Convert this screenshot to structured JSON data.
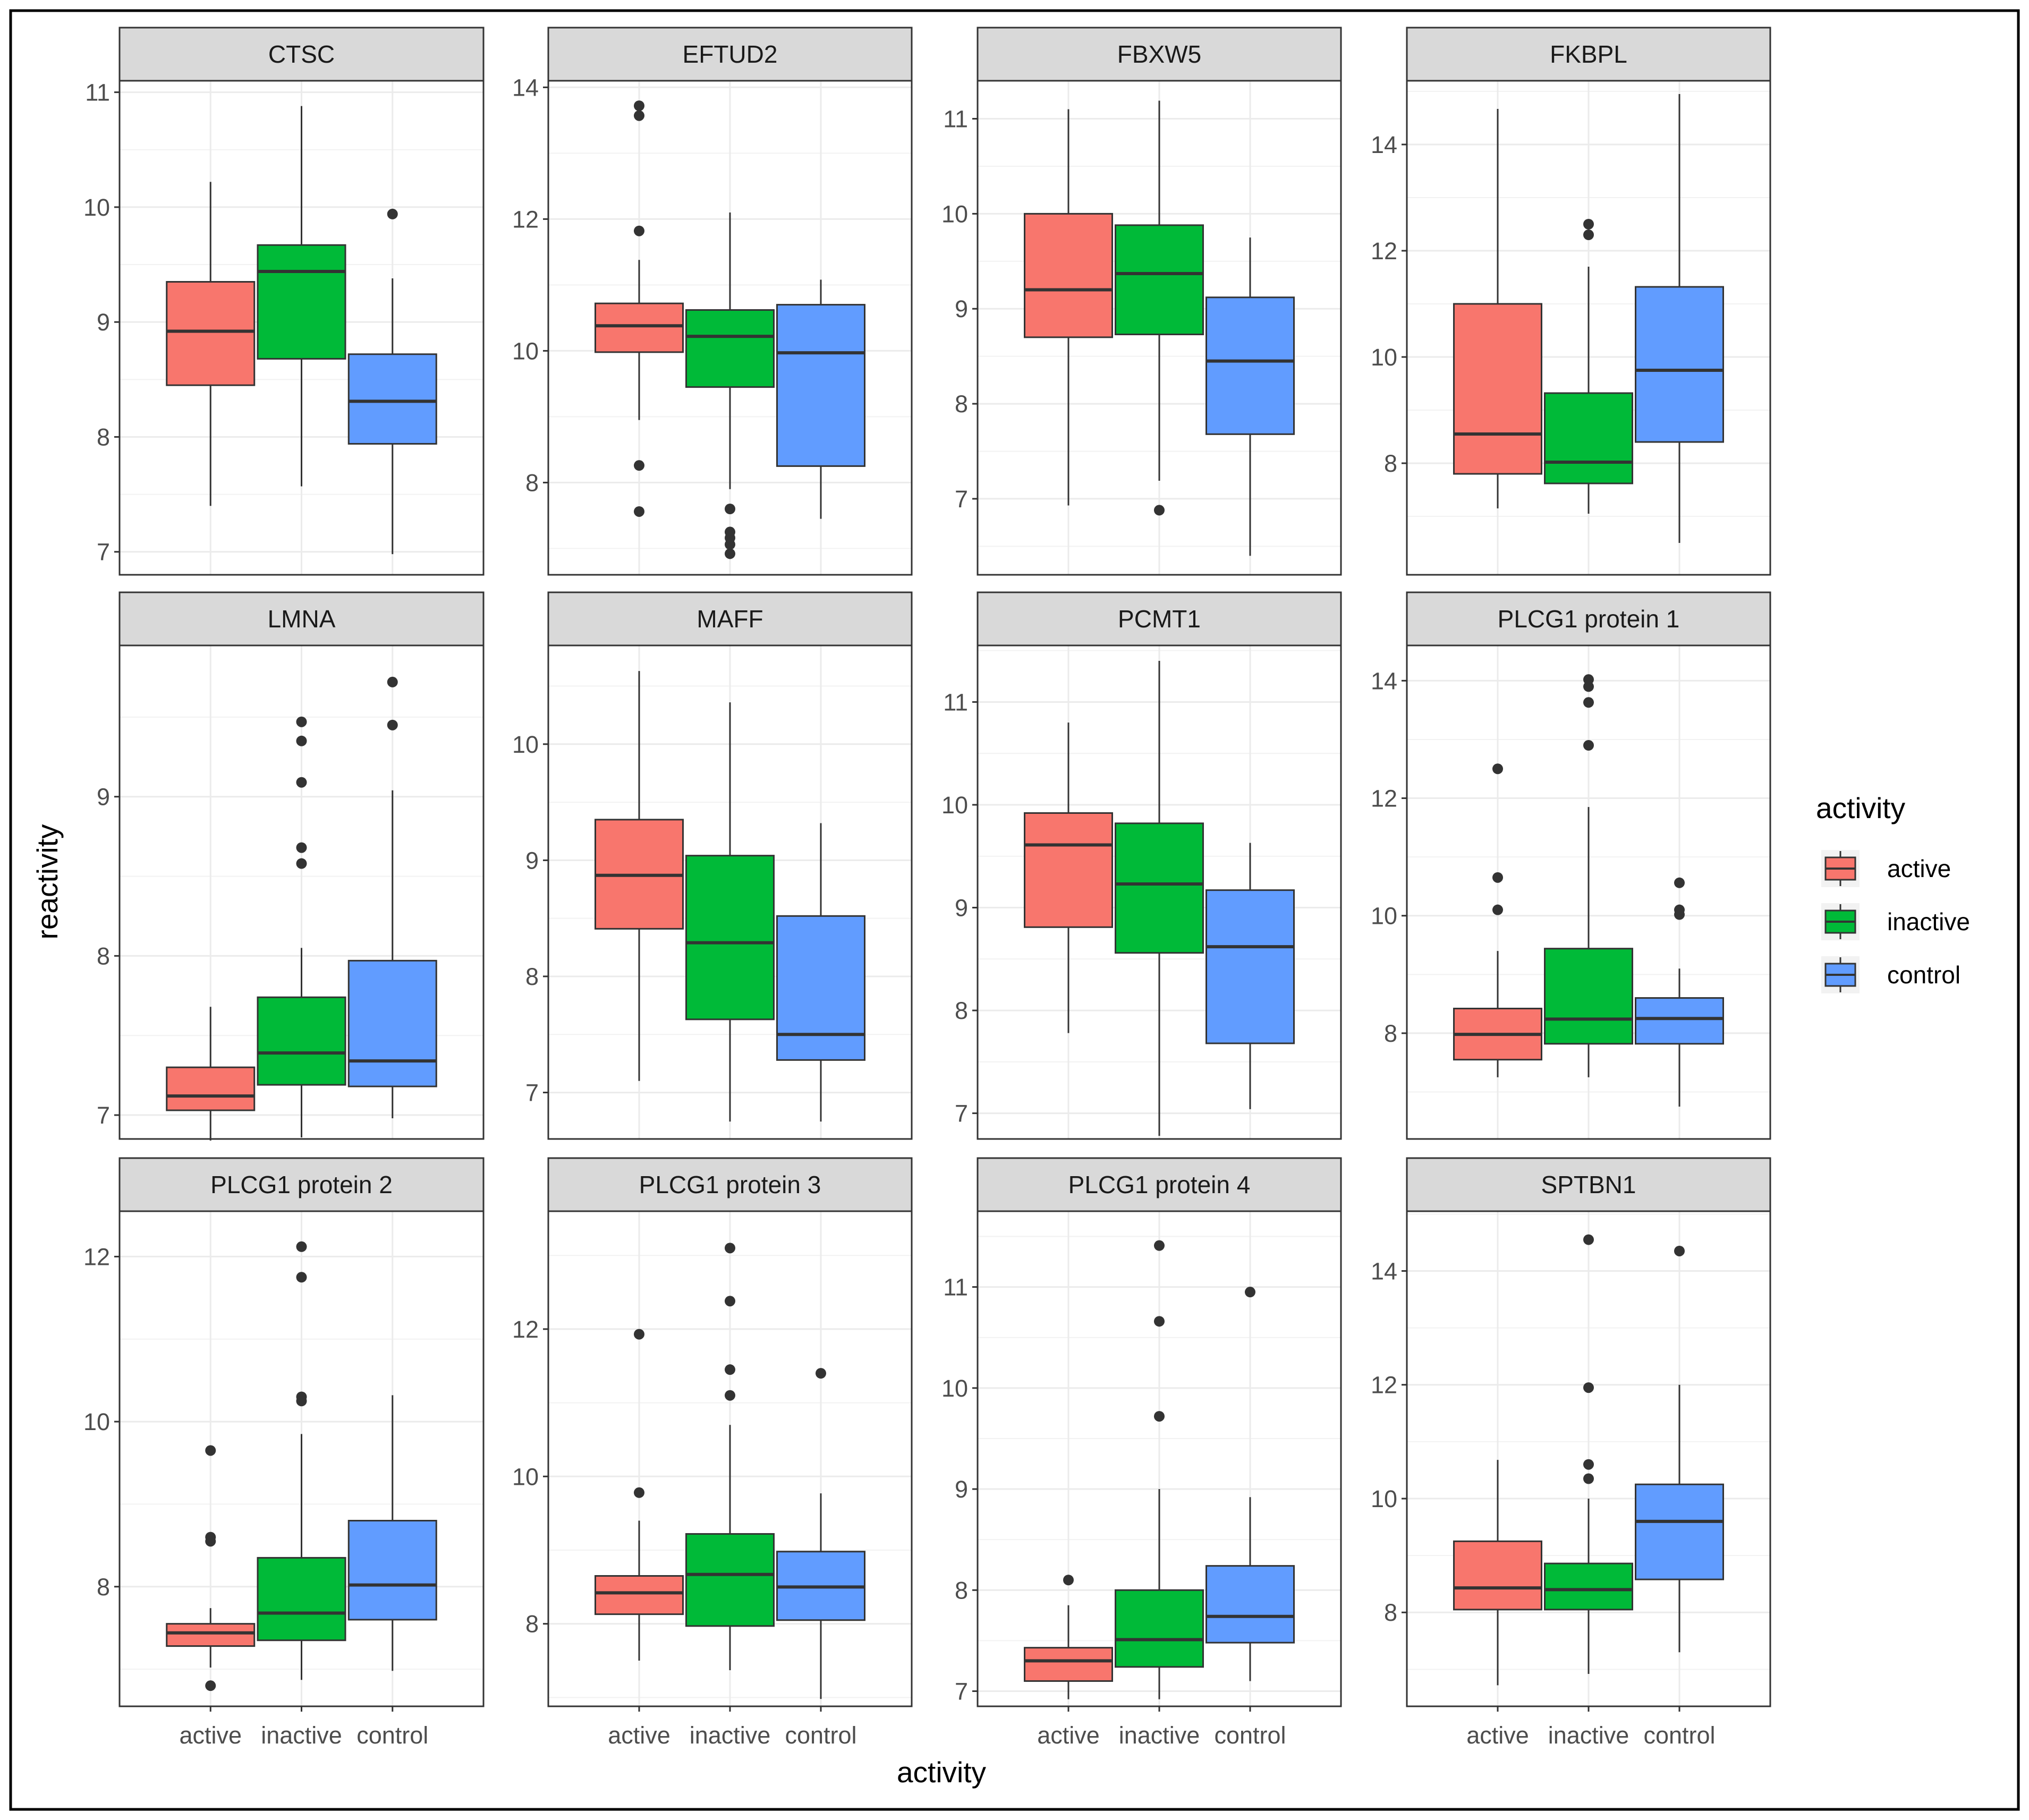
{
  "chart_data": {
    "type": "boxplot",
    "facet_layout": "4 columns x 3 rows",
    "xlabel": "activity",
    "ylabel": "reactivity",
    "categories": [
      "active",
      "inactive",
      "control"
    ],
    "legend": {
      "title": "activity",
      "position": "right",
      "entries": [
        {
          "label": "active",
          "color": "#F8766D"
        },
        {
          "label": "inactive",
          "color": "#00BA38"
        },
        {
          "label": "control",
          "color": "#619CFF"
        }
      ]
    },
    "grid": true,
    "panels": [
      {
        "title": "CTSC",
        "ylim": [
          6.8,
          11.1
        ],
        "yticks": [
          7,
          8,
          9,
          10,
          11
        ],
        "boxes": [
          {
            "group": "active",
            "low": 7.4,
            "q1": 8.45,
            "median": 8.92,
            "q3": 9.35,
            "high": 10.22,
            "outliers": []
          },
          {
            "group": "inactive",
            "low": 7.57,
            "q1": 8.68,
            "median": 9.44,
            "q3": 9.67,
            "high": 10.88,
            "outliers": []
          },
          {
            "group": "control",
            "low": 6.98,
            "q1": 7.94,
            "median": 8.31,
            "q3": 8.72,
            "high": 9.38,
            "outliers": [
              9.94
            ]
          }
        ]
      },
      {
        "title": "EFTUD2",
        "ylim": [
          6.6,
          14.1
        ],
        "yticks": [
          8,
          10,
          12,
          14
        ],
        "boxes": [
          {
            "group": "active",
            "low": 8.95,
            "q1": 9.98,
            "median": 10.38,
            "q3": 10.72,
            "high": 11.38,
            "outliers": [
              7.56,
              8.26,
              11.82,
              13.57,
              13.72
            ]
          },
          {
            "group": "inactive",
            "low": 7.9,
            "q1": 9.45,
            "median": 10.22,
            "q3": 10.62,
            "high": 12.1,
            "outliers": [
              6.92,
              7.06,
              7.16,
              7.25,
              7.6
            ]
          },
          {
            "group": "control",
            "low": 7.45,
            "q1": 8.25,
            "median": 9.97,
            "q3": 10.7,
            "high": 11.08,
            "outliers": []
          }
        ]
      },
      {
        "title": "FBXW5",
        "ylim": [
          6.2,
          11.4
        ],
        "yticks": [
          7,
          8,
          9,
          10,
          11
        ],
        "boxes": [
          {
            "group": "active",
            "low": 6.93,
            "q1": 8.7,
            "median": 9.2,
            "q3": 10.0,
            "high": 11.1,
            "outliers": []
          },
          {
            "group": "inactive",
            "low": 7.19,
            "q1": 8.73,
            "median": 9.37,
            "q3": 9.88,
            "high": 11.19,
            "outliers": [
              6.88
            ]
          },
          {
            "group": "control",
            "low": 6.4,
            "q1": 7.68,
            "median": 8.45,
            "q3": 9.12,
            "high": 9.75,
            "outliers": []
          }
        ]
      },
      {
        "title": "FKBPL",
        "ylim": [
          5.9,
          15.2
        ],
        "yticks": [
          8,
          10,
          12,
          14
        ],
        "boxes": [
          {
            "group": "active",
            "low": 7.15,
            "q1": 7.8,
            "median": 8.55,
            "q3": 11.0,
            "high": 14.67,
            "outliers": []
          },
          {
            "group": "inactive",
            "low": 7.05,
            "q1": 7.62,
            "median": 8.02,
            "q3": 9.32,
            "high": 11.7,
            "outliers": [
              12.3,
              12.5
            ]
          },
          {
            "group": "control",
            "low": 6.5,
            "q1": 8.4,
            "median": 9.75,
            "q3": 11.32,
            "high": 14.95,
            "outliers": []
          }
        ]
      },
      {
        "title": "LMNA",
        "ylim": [
          6.85,
          9.95
        ],
        "yticks": [
          7,
          8,
          9
        ],
        "boxes": [
          {
            "group": "active",
            "low": 6.84,
            "q1": 7.03,
            "median": 7.12,
            "q3": 7.3,
            "high": 7.68,
            "outliers": []
          },
          {
            "group": "inactive",
            "low": 6.86,
            "q1": 7.19,
            "median": 7.39,
            "q3": 7.74,
            "high": 8.05,
            "outliers": [
              8.58,
              8.68,
              9.09,
              9.35,
              9.47
            ]
          },
          {
            "group": "control",
            "low": 6.98,
            "q1": 7.18,
            "median": 7.34,
            "q3": 7.97,
            "high": 9.04,
            "outliers": [
              9.45,
              9.72
            ]
          }
        ]
      },
      {
        "title": "MAFF",
        "ylim": [
          6.6,
          10.85
        ],
        "yticks": [
          7,
          8,
          9,
          10
        ],
        "boxes": [
          {
            "group": "active",
            "low": 7.1,
            "q1": 8.41,
            "median": 8.87,
            "q3": 9.35,
            "high": 10.63,
            "outliers": []
          },
          {
            "group": "inactive",
            "low": 6.75,
            "q1": 7.63,
            "median": 8.29,
            "q3": 9.04,
            "high": 10.36,
            "outliers": []
          },
          {
            "group": "control",
            "low": 6.75,
            "q1": 7.28,
            "median": 7.5,
            "q3": 8.52,
            "high": 9.32,
            "outliers": []
          }
        ]
      },
      {
        "title": "PCMT1",
        "ylim": [
          6.75,
          11.55
        ],
        "yticks": [
          7,
          8,
          9,
          10,
          11
        ],
        "boxes": [
          {
            "group": "active",
            "low": 7.78,
            "q1": 8.81,
            "median": 9.61,
            "q3": 9.92,
            "high": 10.8,
            "outliers": []
          },
          {
            "group": "inactive",
            "low": 6.78,
            "q1": 8.56,
            "median": 9.23,
            "q3": 9.82,
            "high": 11.4,
            "outliers": []
          },
          {
            "group": "control",
            "low": 7.04,
            "q1": 7.68,
            "median": 8.62,
            "q3": 9.17,
            "high": 9.63,
            "outliers": []
          }
        ]
      },
      {
        "title": "PLCG1 protein 1",
        "ylim": [
          6.2,
          14.6
        ],
        "yticks": [
          8,
          10,
          12,
          14
        ],
        "boxes": [
          {
            "group": "active",
            "low": 7.25,
            "q1": 7.55,
            "median": 7.98,
            "q3": 8.42,
            "high": 9.4,
            "outliers": [
              10.1,
              10.65,
              12.5
            ]
          },
          {
            "group": "inactive",
            "low": 7.25,
            "q1": 7.82,
            "median": 8.24,
            "q3": 9.44,
            "high": 11.85,
            "outliers": [
              12.9,
              13.63,
              13.9,
              14.02
            ]
          },
          {
            "group": "control",
            "low": 6.75,
            "q1": 7.82,
            "median": 8.25,
            "q3": 8.6,
            "high": 9.1,
            "outliers": [
              10.02,
              10.1,
              10.56
            ]
          }
        ]
      },
      {
        "title": "PLCG1 protein 2",
        "ylim": [
          6.55,
          12.55
        ],
        "yticks": [
          8,
          10,
          12
        ],
        "boxes": [
          {
            "group": "active",
            "low": 7.02,
            "q1": 7.28,
            "median": 7.44,
            "q3": 7.55,
            "high": 7.74,
            "outliers": [
              6.8,
              8.55,
              8.6,
              9.65
            ]
          },
          {
            "group": "inactive",
            "low": 6.87,
            "q1": 7.35,
            "median": 7.68,
            "q3": 8.35,
            "high": 9.85,
            "outliers": [
              10.25,
              10.3,
              11.75,
              12.12
            ]
          },
          {
            "group": "control",
            "low": 6.98,
            "q1": 7.6,
            "median": 8.02,
            "q3": 8.8,
            "high": 10.32,
            "outliers": []
          }
        ]
      },
      {
        "title": "PLCG1 protein 3",
        "ylim": [
          6.88,
          13.6
        ],
        "yticks": [
          8,
          10,
          12
        ],
        "boxes": [
          {
            "group": "active",
            "low": 7.5,
            "q1": 8.13,
            "median": 8.42,
            "q3": 8.65,
            "high": 9.4,
            "outliers": [
              9.78,
              11.93
            ]
          },
          {
            "group": "inactive",
            "low": 7.37,
            "q1": 7.97,
            "median": 8.67,
            "q3": 9.22,
            "high": 10.7,
            "outliers": [
              11.1,
              11.45,
              12.38,
              13.1
            ]
          },
          {
            "group": "control",
            "low": 6.98,
            "q1": 8.05,
            "median": 8.5,
            "q3": 8.98,
            "high": 9.77,
            "outliers": [
              11.4
            ]
          }
        ]
      },
      {
        "title": "PLCG1 protein 4",
        "ylim": [
          6.85,
          11.75
        ],
        "yticks": [
          7,
          8,
          9,
          10,
          11
        ],
        "boxes": [
          {
            "group": "active",
            "low": 6.92,
            "q1": 7.1,
            "median": 7.3,
            "q3": 7.43,
            "high": 7.85,
            "outliers": [
              8.1
            ]
          },
          {
            "group": "inactive",
            "low": 6.92,
            "q1": 7.24,
            "median": 7.51,
            "q3": 8.0,
            "high": 9.0,
            "outliers": [
              9.72,
              10.66,
              11.41
            ]
          },
          {
            "group": "control",
            "low": 7.1,
            "q1": 7.48,
            "median": 7.74,
            "q3": 8.24,
            "high": 8.92,
            "outliers": [
              10.95
            ]
          }
        ]
      },
      {
        "title": "SPTBN1",
        "ylim": [
          6.35,
          15.05
        ],
        "yticks": [
          8,
          10,
          12,
          14
        ],
        "boxes": [
          {
            "group": "active",
            "low": 6.72,
            "q1": 8.05,
            "median": 8.43,
            "q3": 9.25,
            "high": 10.68,
            "outliers": []
          },
          {
            "group": "inactive",
            "low": 6.92,
            "q1": 8.05,
            "median": 8.4,
            "q3": 8.86,
            "high": 10.0,
            "outliers": [
              10.35,
              10.6,
              11.95,
              14.55
            ]
          },
          {
            "group": "control",
            "low": 7.3,
            "q1": 8.58,
            "median": 9.6,
            "q3": 10.25,
            "high": 12.0,
            "outliers": [
              14.35
            ]
          }
        ]
      }
    ]
  }
}
